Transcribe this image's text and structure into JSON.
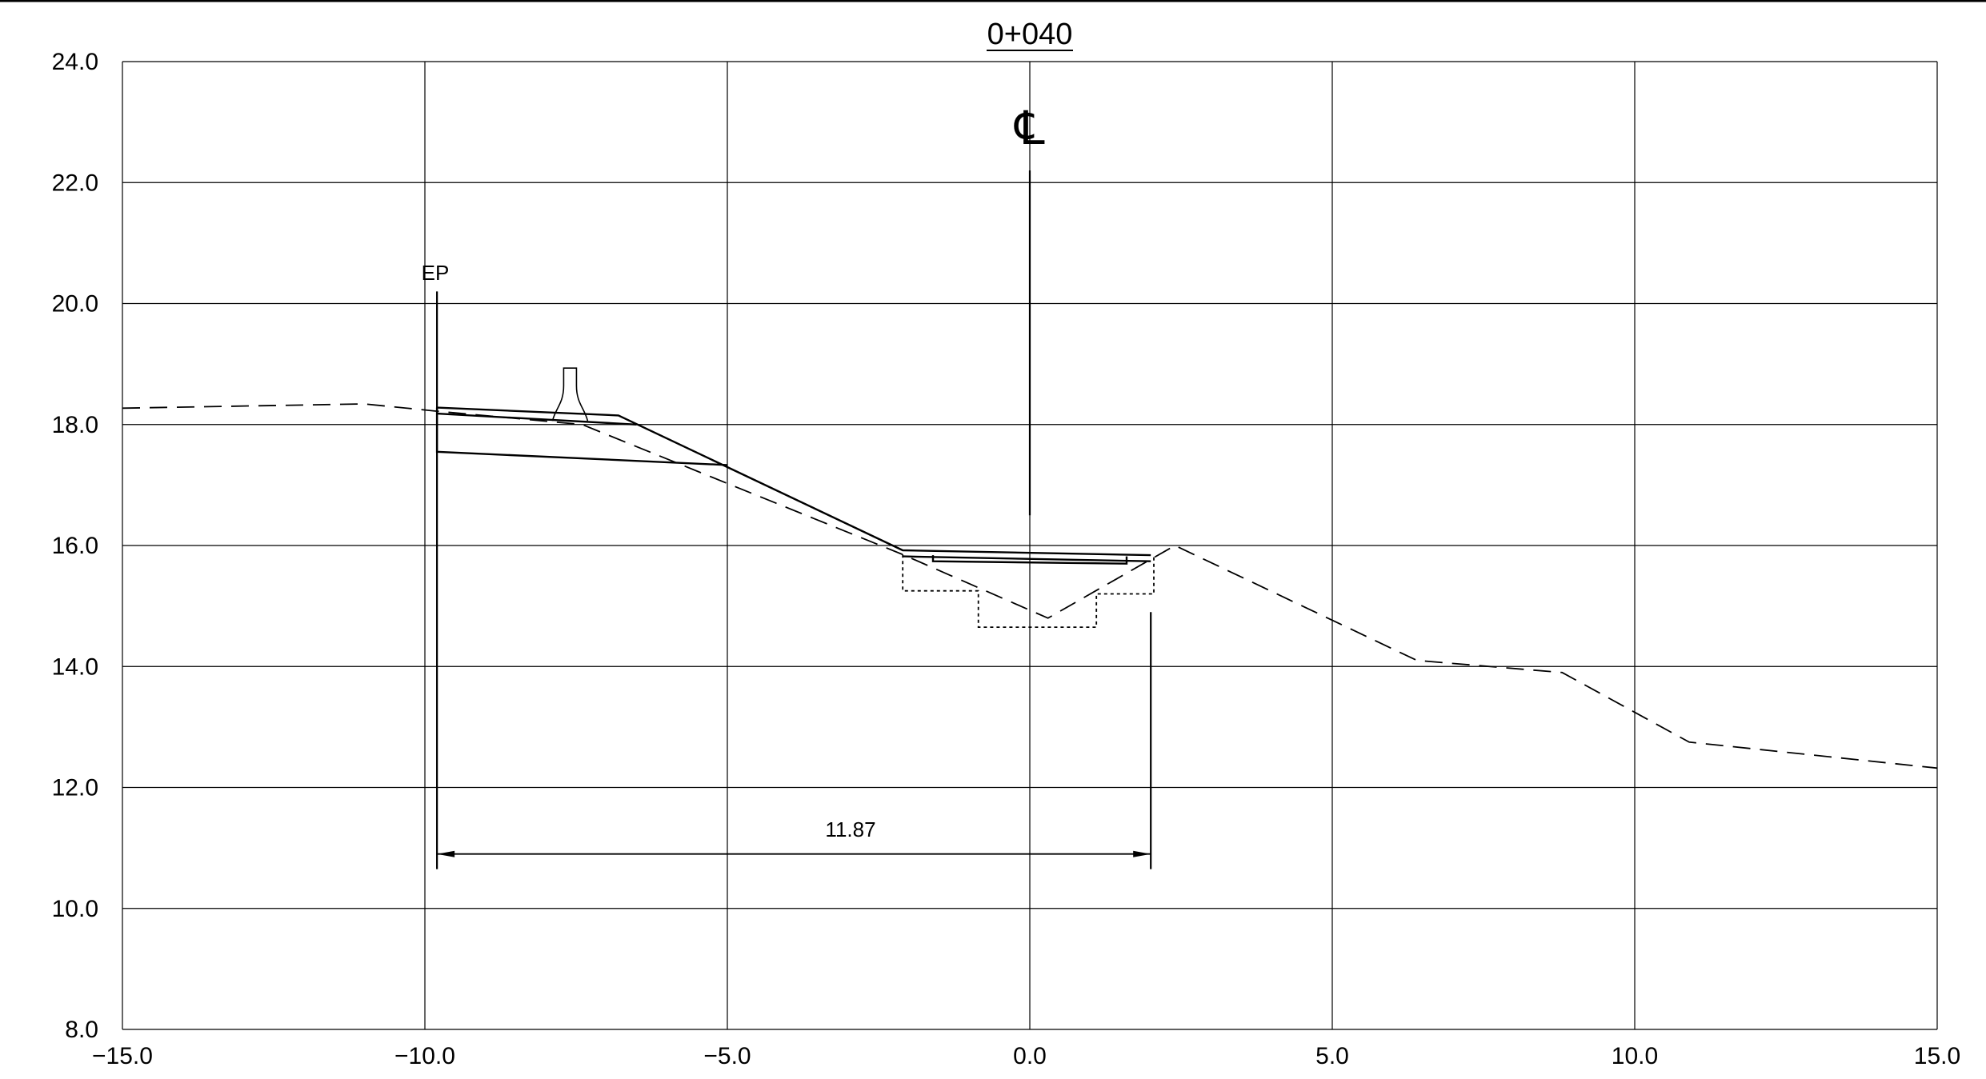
{
  "drawing": {
    "station_label": "0+040",
    "centerline_symbol": "℄",
    "edge_label": "EP",
    "dimension_label": "11.87"
  },
  "chart_data": {
    "type": "line",
    "title": "0+040",
    "xlim": [
      -15,
      15
    ],
    "ylim": [
      8,
      24
    ],
    "grid": true,
    "x_ticks": [
      "−15.0",
      "−10.0",
      "−5.0",
      "0.0",
      "5.0",
      "10.0",
      "15.0"
    ],
    "y_ticks": [
      "8.0",
      "10.0",
      "12.0",
      "14.0",
      "16.0",
      "18.0",
      "20.0",
      "22.0",
      "24.0"
    ],
    "x_tick_values": [
      -15,
      -10,
      -5,
      0,
      5,
      10,
      15
    ],
    "y_tick_values": [
      8,
      10,
      12,
      14,
      16,
      18,
      20,
      22,
      24
    ],
    "series": [
      {
        "style": "dashed",
        "x": [
          -15.0,
          -11.0,
          -9.8,
          -7.4,
          -2.1,
          0.3,
          2.4,
          6.4,
          8.8,
          10.9,
          15.0
        ],
        "y": [
          18.27,
          18.34,
          18.22,
          18.0,
          15.85,
          14.8,
          16.0,
          14.1,
          13.9,
          12.75,
          12.32
        ]
      },
      {
        "style": "solid",
        "x": [
          -9.8,
          -6.8,
          -2.1,
          2.0
        ],
        "y": [
          18.28,
          18.15,
          15.92,
          15.84
        ]
      },
      {
        "style": "solid",
        "x": [
          -9.8,
          -6.5
        ],
        "y": [
          18.18,
          18.0
        ]
      },
      {
        "style": "solid",
        "x": [
          -9.8,
          -9.8,
          -5.0
        ],
        "y": [
          18.28,
          17.55,
          17.33
        ]
      },
      {
        "style": "solid",
        "x": [
          -2.1,
          2.0
        ],
        "y": [
          15.82,
          15.74
        ]
      },
      {
        "style": "solid",
        "x": [
          -1.6,
          -1.6,
          1.6,
          1.6
        ],
        "y": [
          15.84,
          15.74,
          15.7,
          15.82
        ]
      },
      {
        "style": "dotted",
        "x": [
          -2.1,
          -2.1,
          -0.85,
          -0.85,
          1.1,
          1.1,
          2.05,
          2.05
        ],
        "y": [
          15.85,
          15.25,
          15.25,
          14.65,
          14.65,
          15.2,
          15.2,
          15.84
        ]
      }
    ],
    "verticals": [
      {
        "name": "ep-line",
        "x": -9.8,
        "y_top": 20.2,
        "y_bottom": 10.65
      },
      {
        "name": "centerline",
        "x": 0.0,
        "y_top": 22.2,
        "y_bottom": 16.5
      },
      {
        "name": "right-extension",
        "x": 2.0,
        "y_top": 14.9,
        "y_bottom": 10.65
      }
    ],
    "dimension": {
      "x1": -9.8,
      "x2": 2.0,
      "y": 10.9,
      "value": 11.87
    },
    "feature_x": -7.6
  }
}
